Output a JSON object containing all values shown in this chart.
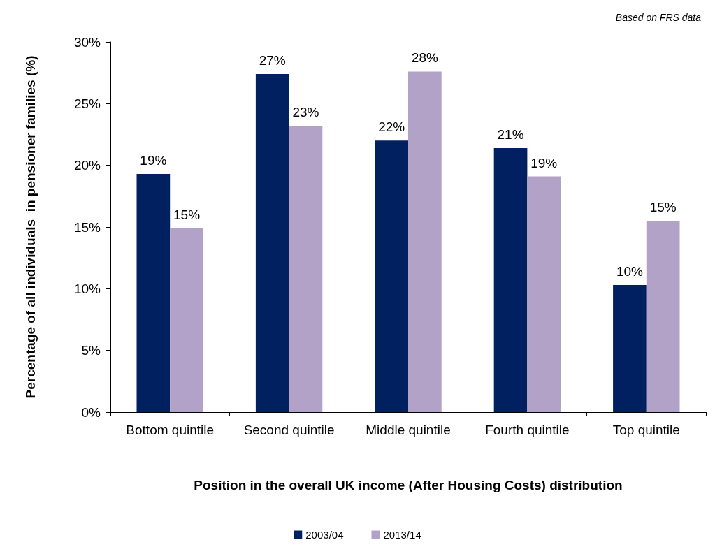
{
  "chart_data": {
    "type": "bar",
    "xlabel": "Position in the overall UK income (After Housing Costs) distribution",
    "ylabel": "Percentage of all individuals  in pensioner families (%)",
    "annotations": [
      "Based on FRS data"
    ],
    "categories": [
      "Bottom quintile",
      "Second quintile",
      "Middle quintile",
      "Fourth quintile",
      "Top quintile"
    ],
    "series": [
      {
        "name": "2003/04",
        "color": "#002060",
        "values": [
          19.3,
          27.4,
          22.0,
          21.4,
          10.3
        ],
        "value_labels": [
          "19%",
          "27%",
          "22%",
          "21%",
          "10%"
        ]
      },
      {
        "name": "2013/14",
        "color": "#b3a2c7",
        "values": [
          14.9,
          23.2,
          27.6,
          19.1,
          15.5
        ],
        "value_labels": [
          "15%",
          "23%",
          "28%",
          "19%",
          "15%"
        ]
      }
    ],
    "ylim": [
      0,
      30
    ],
    "yticks": [
      {
        "value": 0,
        "label": "0%"
      },
      {
        "value": 5,
        "label": "5%"
      },
      {
        "value": 10,
        "label": "10%"
      },
      {
        "value": 15,
        "label": "15%"
      },
      {
        "value": 20,
        "label": "20%"
      },
      {
        "value": 25,
        "label": "25%"
      },
      {
        "value": 30,
        "label": "30%"
      }
    ],
    "legend": "bottom",
    "grid": false
  }
}
